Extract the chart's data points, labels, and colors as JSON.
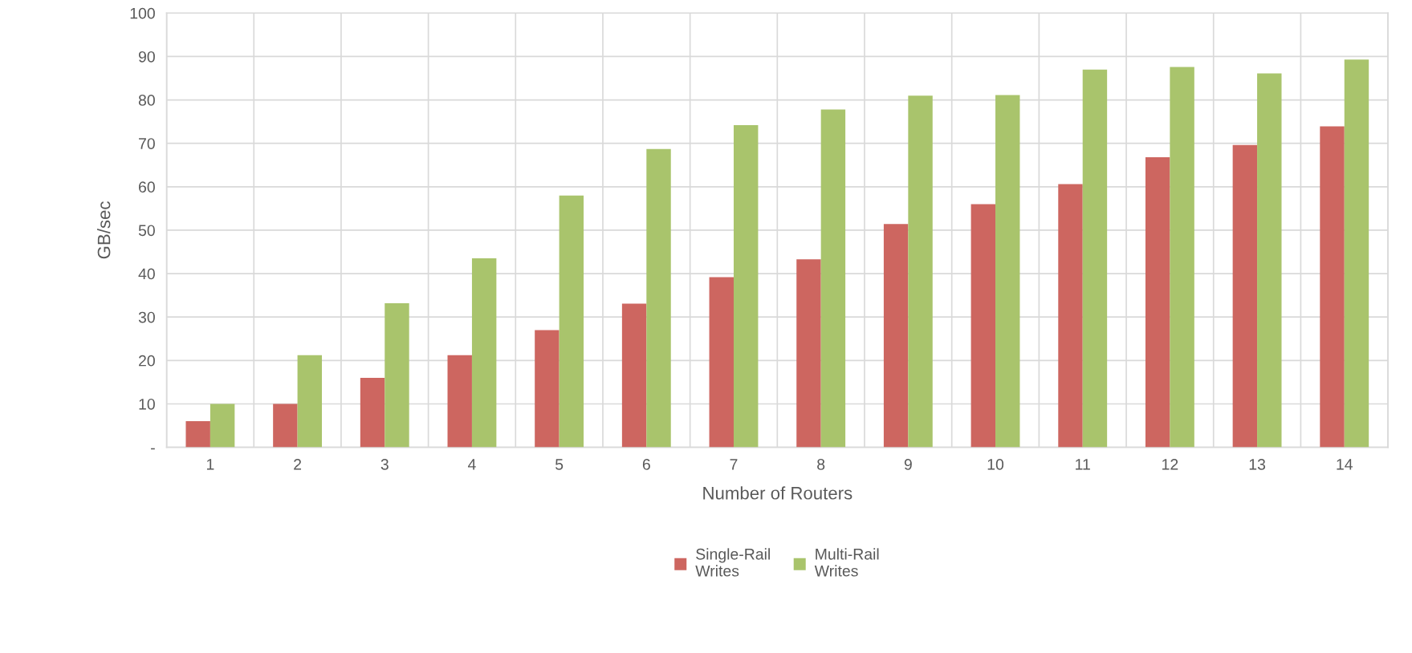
{
  "chart_data": {
    "type": "bar",
    "xlabel": "Number of Routers",
    "ylabel": "GB/sec",
    "categories": [
      "1",
      "2",
      "3",
      "4",
      "5",
      "6",
      "7",
      "8",
      "9",
      "10",
      "11",
      "12",
      "13",
      "14"
    ],
    "series": [
      {
        "name": "Single-Rail Writes",
        "color": "#cd6660",
        "values": [
          6,
          10,
          16,
          21.2,
          27,
          33.1,
          39.2,
          43.3,
          51.4,
          56,
          60.6,
          66.8,
          69.6,
          73.9
        ]
      },
      {
        "name": "Multi-Rail Writes",
        "color": "#a9c46c",
        "values": [
          10,
          21.2,
          33.2,
          43.5,
          58,
          68.7,
          74.2,
          77.8,
          81,
          81.1,
          87,
          87.6,
          86.1,
          89.3
        ]
      }
    ],
    "ylim": [
      0,
      100
    ],
    "yticks": [
      {
        "value": 0,
        "label": "-"
      },
      10,
      20,
      30,
      40,
      50,
      60,
      70,
      80,
      90,
      100
    ],
    "grid": true,
    "legend": "bottom"
  }
}
